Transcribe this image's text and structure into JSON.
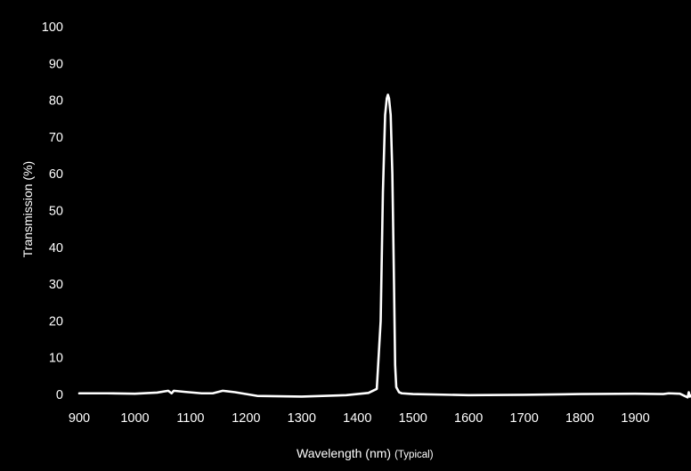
{
  "chart_data": {
    "type": "line",
    "title": "",
    "xlabel": "Wavelength (nm)",
    "xlabel_note": "(Typical)",
    "ylabel": "Transmission (%)",
    "xlim": [
      900,
      2000
    ],
    "ylim": [
      0,
      100
    ],
    "xticks": [
      "900",
      "1000",
      "1100",
      "1200",
      "1300",
      "1400",
      "1500",
      "1600",
      "1700",
      "1800",
      "1900"
    ],
    "yticks": [
      "0",
      "10",
      "20",
      "30",
      "40",
      "50",
      "60",
      "70",
      "80",
      "90",
      "100"
    ],
    "grid": false,
    "legend": "none",
    "colors": {
      "background": "#000000",
      "line": "#ffffff",
      "text": "#ffffff"
    },
    "series": [
      {
        "x": [
          900,
          950,
          1000,
          1040,
          1060,
          1066,
          1070,
          1090,
          1120,
          1140,
          1158,
          1180,
          1220,
          1300,
          1380,
          1420,
          1435,
          1442,
          1446,
          1450,
          1453,
          1455,
          1457,
          1460,
          1463,
          1466,
          1468,
          1470,
          1475,
          1480,
          1500,
          1600,
          1700,
          1800,
          1900,
          1950,
          1960,
          1980,
          1994,
          1996,
          1998,
          2000
        ],
        "y": [
          0.3,
          0.3,
          0.2,
          0.5,
          1.0,
          0.3,
          1.0,
          0.7,
          0.3,
          0.3,
          1.0,
          0.6,
          -0.4,
          -0.6,
          -0.2,
          0.4,
          1.5,
          20,
          55,
          76,
          80.5,
          81.5,
          80.5,
          76,
          60,
          30,
          8,
          2,
          0.6,
          0.3,
          0.1,
          -0.2,
          -0.1,
          0.1,
          0.2,
          0.1,
          0.3,
          0.2,
          -0.8,
          0.6,
          -0.6,
          -0.3
        ]
      }
    ]
  }
}
